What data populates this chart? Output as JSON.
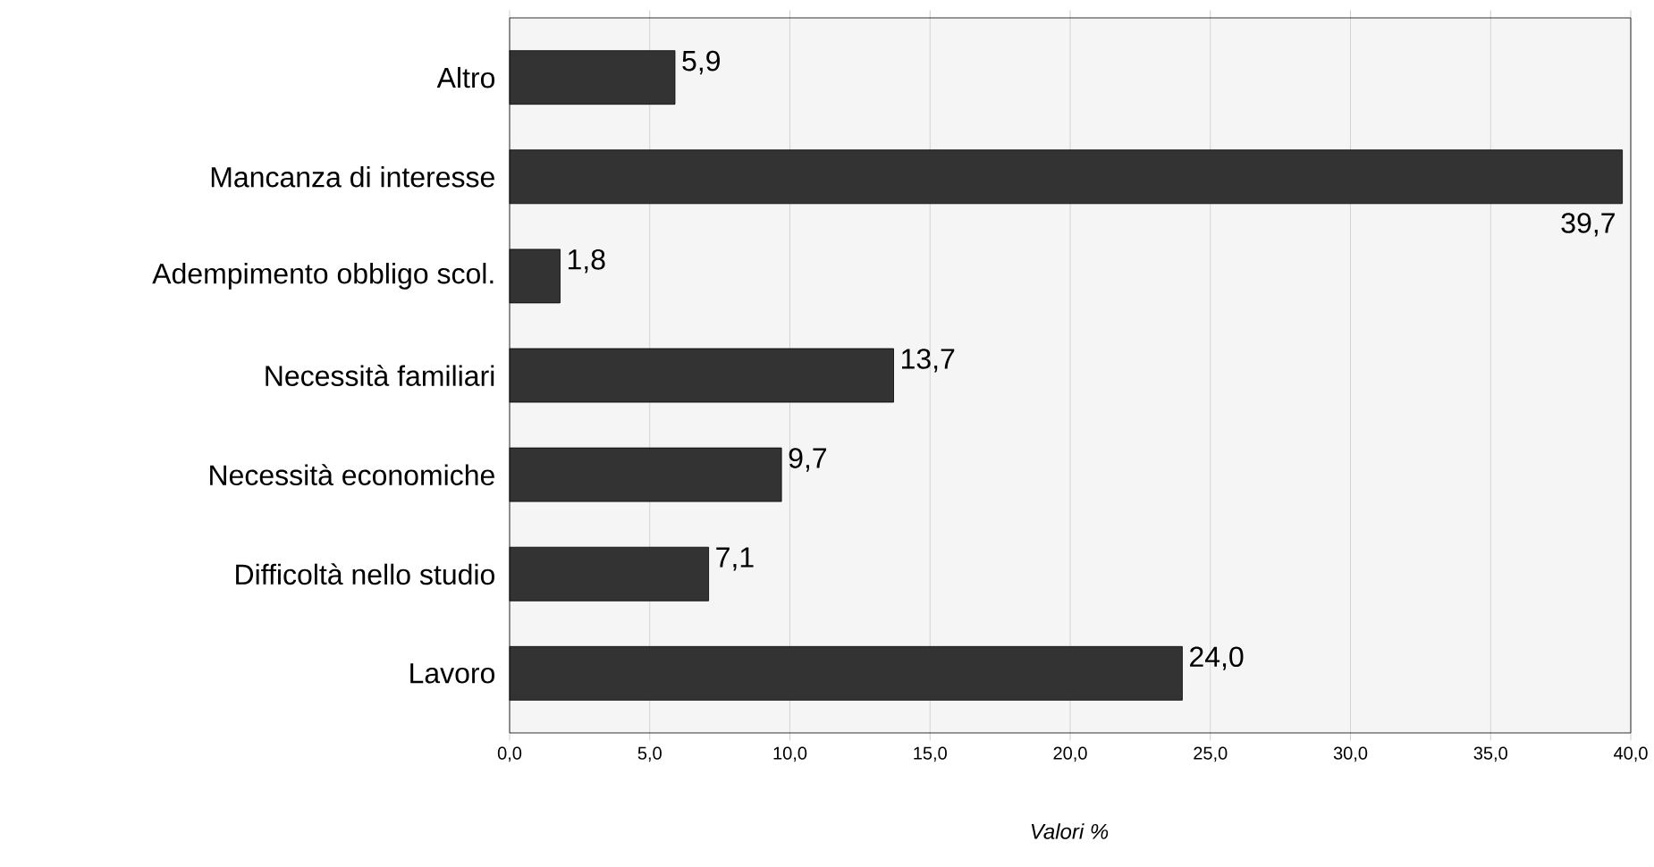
{
  "chart_data": {
    "type": "bar",
    "orientation": "horizontal",
    "xlabel": "Valori %",
    "categories": [
      "Altro",
      "Mancanza di interesse",
      "Adempimento obbligo scol.",
      "Necessità familiari",
      "Necessità economiche",
      "Difficoltà nello studio",
      "Lavoro"
    ],
    "values": [
      5.9,
      39.7,
      1.8,
      13.7,
      9.7,
      7.1,
      24.0
    ],
    "value_labels": [
      "5,9",
      "39,7",
      "1,8",
      "13,7",
      "9,7",
      "7,1",
      "24,0"
    ],
    "color": "#333333",
    "xlim": [
      0,
      40
    ],
    "xticks": [
      {
        "value": 0,
        "label": "0,0"
      },
      {
        "value": 5,
        "label": "5,0"
      },
      {
        "value": 10,
        "label": "10,0"
      },
      {
        "value": 15,
        "label": "15,0"
      },
      {
        "value": 20,
        "label": "20,0"
      },
      {
        "value": 25,
        "label": "25,0"
      },
      {
        "value": 30,
        "label": "30,0"
      },
      {
        "value": 35,
        "label": "35,0"
      },
      {
        "value": 40,
        "label": "40,0"
      }
    ],
    "grid": "x"
  }
}
